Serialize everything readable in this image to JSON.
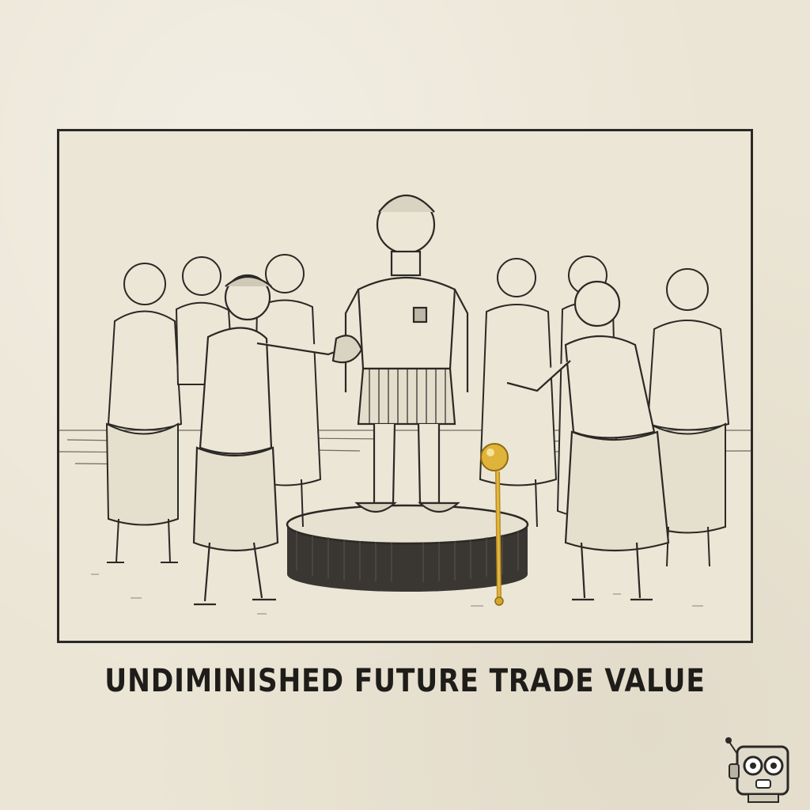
{
  "caption": "UNDIMINISHED FUTURE TRADE VALUE",
  "colors": {
    "paper": "#ebe5d5",
    "ink": "#2b2925",
    "scepter_gold": "#d4a72c",
    "pedestal": "#3a3733"
  },
  "icons": [
    "robot-mascot-icon",
    "golden-scepter"
  ]
}
